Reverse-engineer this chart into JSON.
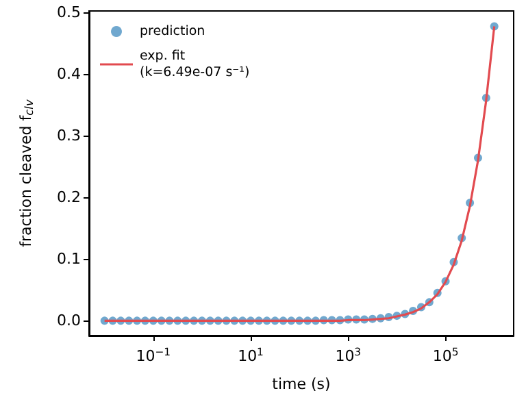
{
  "chart_data": {
    "type": "scatter",
    "xlabel": "time (s)",
    "ylabel": "fraction cleaved f$_{clv}$",
    "x": [
      0.01,
      0.0147,
      0.0215,
      0.0316,
      0.0464,
      0.0681,
      0.1,
      0.147,
      0.215,
      0.316,
      0.464,
      0.681,
      1,
      1.47,
      2.15,
      3.16,
      4.64,
      6.81,
      10,
      14.7,
      21.5,
      31.6,
      46.4,
      68.1,
      100,
      147,
      215,
      316,
      464,
      681,
      1000,
      1470,
      2150,
      3160,
      4640,
      6810,
      10000,
      14700,
      21500,
      31600,
      46400,
      68100,
      100000,
      147000,
      215000,
      316000,
      464000,
      681000,
      1000000
    ],
    "series": [
      {
        "name": "prediction",
        "color": "#4c92c3",
        "marker": "circle",
        "values": [
          0,
          0,
          0,
          0,
          0,
          0,
          0,
          0,
          0,
          0,
          0,
          0,
          0,
          0,
          0,
          0,
          0,
          0,
          0,
          0,
          0,
          0,
          0,
          0,
          0,
          0,
          0,
          0.001,
          0.001,
          0.001,
          0.002,
          0.002,
          0.002,
          0.003,
          0.004,
          0.006,
          0.008,
          0.011,
          0.016,
          0.022,
          0.03,
          0.045,
          0.064,
          0.095,
          0.134,
          0.191,
          0.264,
          0.361,
          0.477
        ]
      },
      {
        "name": "exp. fit\n(k=6.49e-07 s⁻¹)",
        "type": "line",
        "color": "#e24a4f",
        "marker": "none",
        "line_style": "solid",
        "values": [
          0,
          0,
          0,
          0,
          0,
          0,
          0,
          0,
          0,
          0,
          0,
          0,
          0,
          0,
          0,
          0,
          0,
          0,
          0,
          0,
          0,
          0,
          0,
          0,
          0,
          0,
          0,
          0,
          0,
          0,
          0.001,
          0.001,
          0.001,
          0.002,
          0.003,
          0.004,
          0.007,
          0.01,
          0.014,
          0.02,
          0.03,
          0.043,
          0.063,
          0.091,
          0.13,
          0.186,
          0.26,
          0.357,
          0.477
        ]
      }
    ],
    "log": "x",
    "xlim": [
      0.0048,
      2500000
    ],
    "xticks": [
      {
        "value": 0.1,
        "label": "10$^{−1}$"
      },
      {
        "value": 10,
        "label": "10$^{1}$"
      },
      {
        "value": 1000,
        "label": "10$^{3}$"
      },
      {
        "value": 100000,
        "label": "10$^{5}$"
      }
    ],
    "ylim": [
      -0.024,
      0.502
    ],
    "yticks": [
      {
        "value": 0,
        "label": "0.0"
      },
      {
        "value": 0.1,
        "label": "0.1"
      },
      {
        "value": 0.2,
        "label": "0.2"
      },
      {
        "value": 0.3,
        "label": "0.3"
      },
      {
        "value": 0.4,
        "label": "0.4"
      },
      {
        "value": 0.5,
        "label": "0.5"
      }
    ],
    "grid": false,
    "legend": "top left"
  }
}
